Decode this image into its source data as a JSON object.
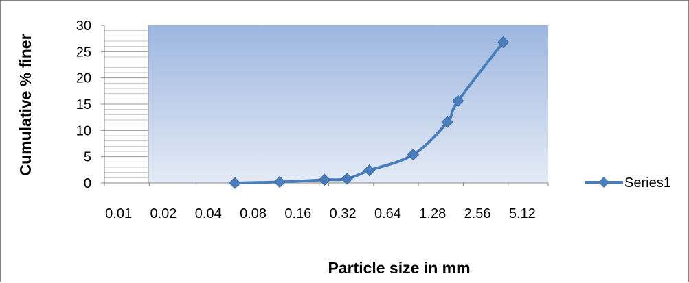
{
  "chart_data": {
    "type": "line",
    "title": "",
    "xlabel": "Particle size in mm",
    "ylabel": "Cumulative % finer",
    "x_scale": "log2",
    "x_tick_labels": [
      "0.01",
      "0.02",
      "0.04",
      "0.08",
      "0.16",
      "0.32",
      "0.64",
      "1.28",
      "2.56",
      "5.12"
    ],
    "y_ticks": [
      "0",
      "5",
      "10",
      "15",
      "20",
      "25",
      "30"
    ],
    "ylim": [
      0,
      30
    ],
    "grid": "horizontal minor lines in left band only",
    "legend_position": "right",
    "series": [
      {
        "name": "Series1",
        "color": "#4A7EBB",
        "marker": "diamond",
        "x": [
          0.075,
          0.15,
          0.3,
          0.425,
          0.6,
          1.18,
          2.0,
          2.36,
          4.75
        ],
        "y": [
          0.0,
          0.2,
          0.6,
          0.8,
          2.4,
          5.4,
          11.6,
          15.6,
          26.8
        ]
      }
    ]
  }
}
